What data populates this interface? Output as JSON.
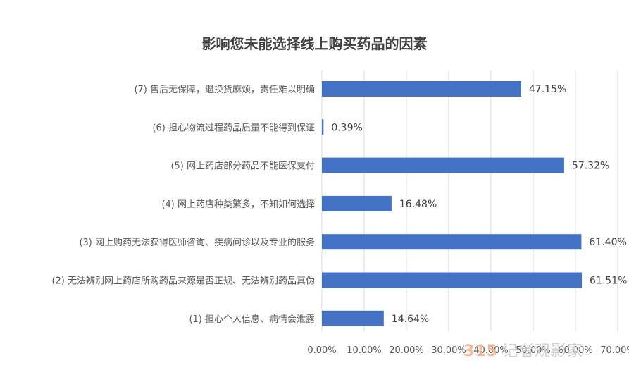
{
  "chart_data": {
    "type": "bar",
    "orientation": "horizontal",
    "title": "影响您未能选择线上购买药品的因素",
    "categories": [
      "(7) 售后无保障，退换货麻烦，责任难以明确",
      "(6) 担心物流过程药品质量不能得到保证",
      "(5) 网上药店部分药品不能医保支付",
      "(4) 网上药店种类繁多，不知如何选择",
      "(3) 网上购药无法获得医师咨询、疾病问诊以及专业的服务",
      "(2) 无法辨别网上药店所购药品来源是否正规、无法辨别药品真伪",
      "(1) 担心个人信息、病情会泄露"
    ],
    "values": [
      47.15,
      0.39,
      57.32,
      16.48,
      61.4,
      61.51,
      14.64
    ],
    "value_labels": [
      "47.15%",
      "0.39%",
      "57.32%",
      "16.48%",
      "61.40%",
      "61.51%",
      "14.64%"
    ],
    "xlim": [
      0,
      70
    ],
    "xticks": [
      "0.00%",
      "10.00%",
      "20.00%",
      "30.00%",
      "40.00%",
      "50.00%",
      "60.00%",
      "70.00%"
    ],
    "bar_color": "#4472c4",
    "grid": true,
    "legend": "none"
  },
  "watermark": {
    "logo": "315",
    "text": "记者观影家"
  }
}
